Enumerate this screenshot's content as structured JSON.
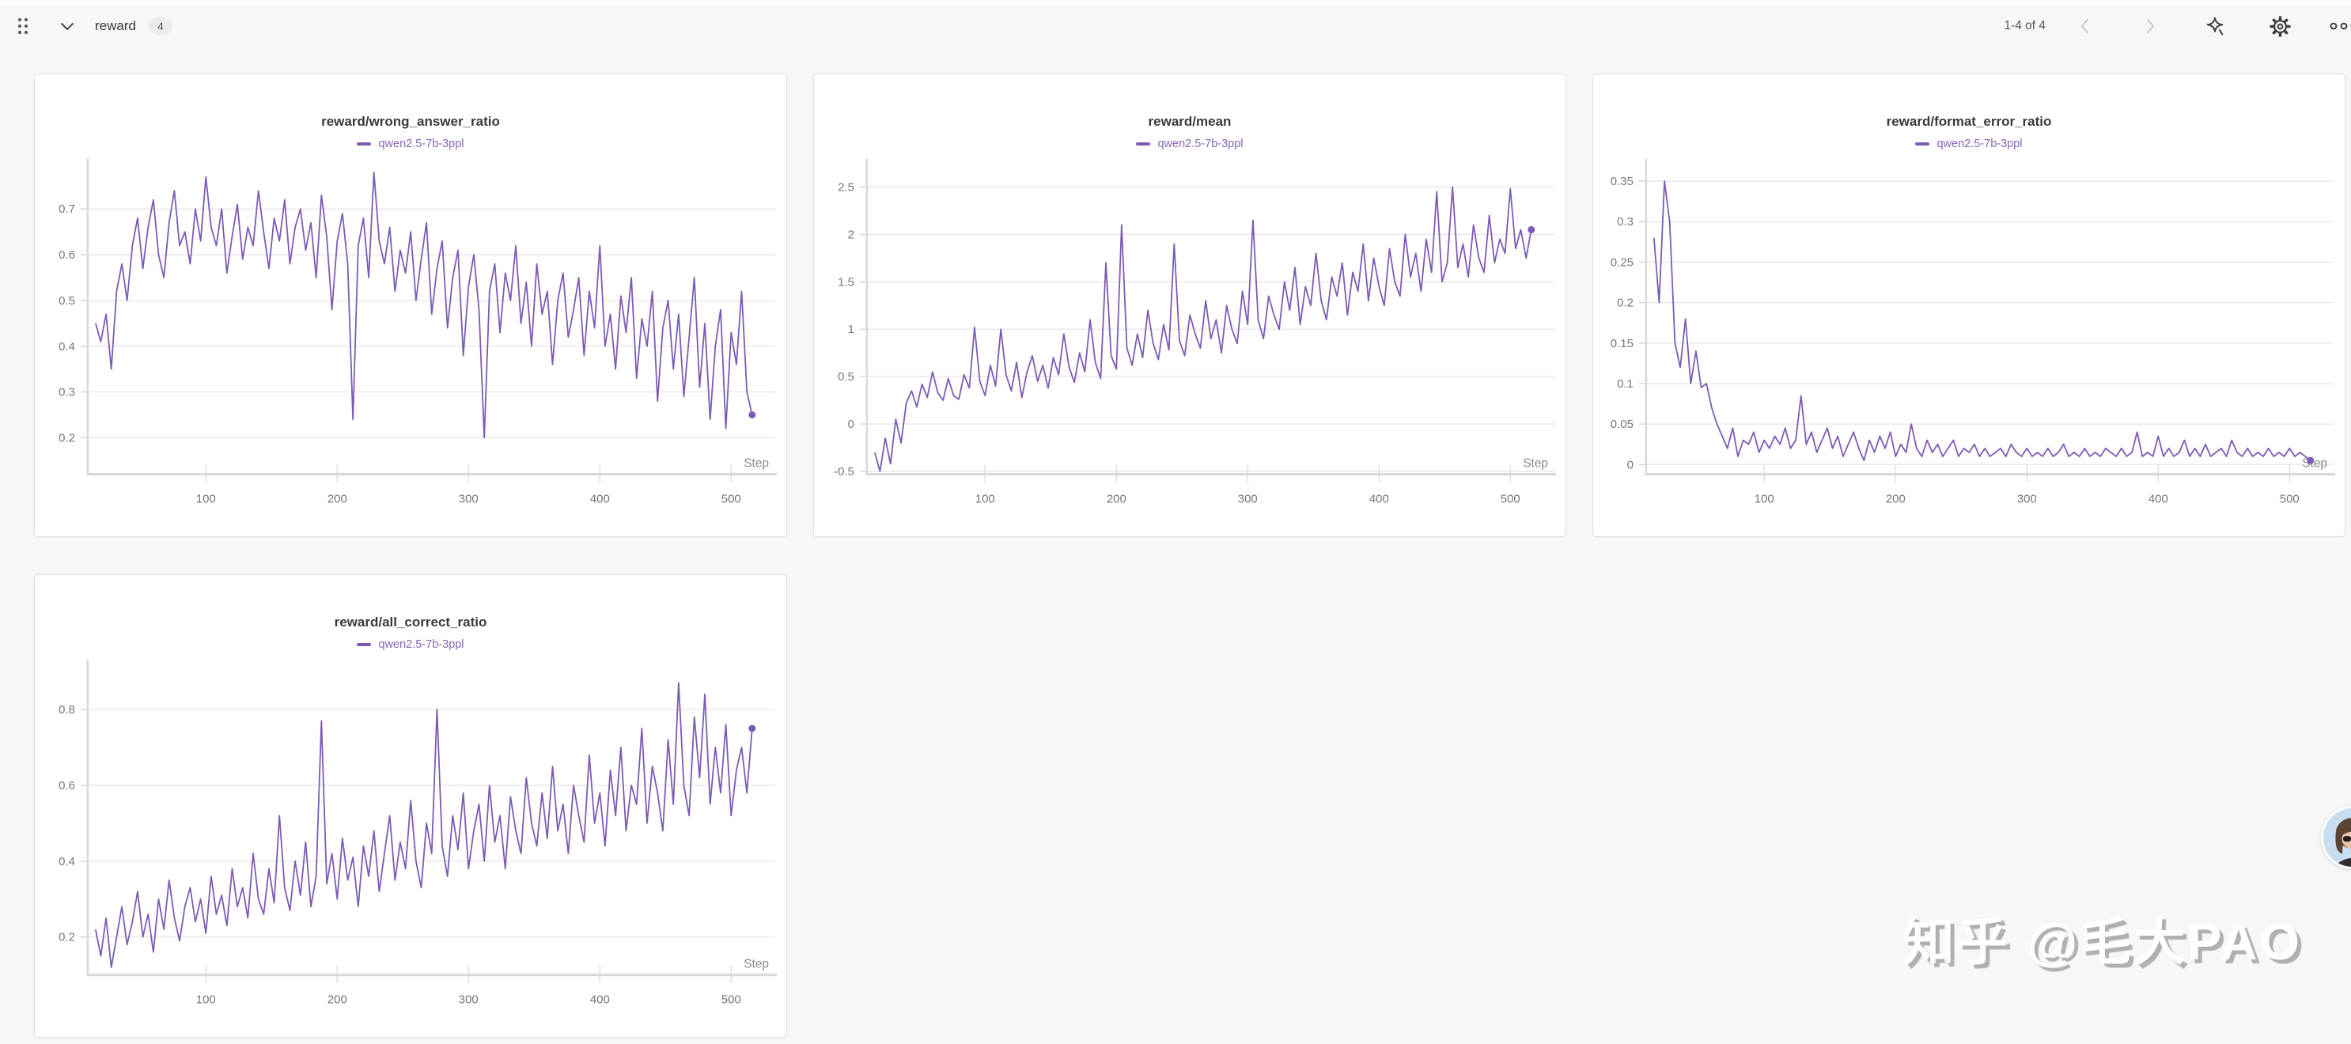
{
  "header": {
    "title": "reward",
    "count_badge": "4",
    "pagination": "1-4 of 4"
  },
  "watermark": "知乎 @毛大PAO",
  "colors": {
    "line": "#7d5bb5",
    "legend_text": "#8566b5",
    "grid": "#e8e8eb",
    "axis": "#d9d9dd"
  },
  "icons": {
    "drag_handle": "grip-dots",
    "collapse": "chevron-down",
    "prev": "chevron-left",
    "next": "chevron-right",
    "sparkle": "sparkle",
    "settings": "gear",
    "more": "ellipsis"
  },
  "chart_data": [
    {
      "type": "line",
      "title": "reward/wrong_answer_ratio",
      "xlabel": "Step",
      "xticks": [
        100,
        200,
        300,
        400,
        500
      ],
      "xlim": [
        10,
        530
      ],
      "yticks": [
        "0.2",
        "0.3",
        "0.4",
        "0.5",
        "0.6",
        "0.7"
      ],
      "ytick_values": [
        0.2,
        0.3,
        0.4,
        0.5,
        0.6,
        0.7
      ],
      "ylim": [
        0.12,
        0.8
      ],
      "grid": "horizontal",
      "legend_position": "top",
      "series": [
        {
          "name": "qwen2.5-7b-3ppl",
          "color": "#7d5bb5",
          "x_start": 16,
          "x_step": 4,
          "values": [
            0.45,
            0.41,
            0.47,
            0.35,
            0.52,
            0.58,
            0.5,
            0.62,
            0.68,
            0.57,
            0.66,
            0.72,
            0.6,
            0.55,
            0.67,
            0.74,
            0.62,
            0.65,
            0.58,
            0.7,
            0.63,
            0.77,
            0.66,
            0.62,
            0.7,
            0.56,
            0.64,
            0.71,
            0.59,
            0.66,
            0.62,
            0.74,
            0.65,
            0.57,
            0.68,
            0.63,
            0.72,
            0.58,
            0.66,
            0.7,
            0.61,
            0.67,
            0.55,
            0.73,
            0.64,
            0.48,
            0.63,
            0.69,
            0.58,
            0.24,
            0.62,
            0.68,
            0.55,
            0.78,
            0.63,
            0.58,
            0.66,
            0.52,
            0.61,
            0.56,
            0.65,
            0.5,
            0.59,
            0.67,
            0.47,
            0.57,
            0.63,
            0.44,
            0.55,
            0.61,
            0.38,
            0.53,
            0.6,
            0.48,
            0.2,
            0.52,
            0.58,
            0.43,
            0.56,
            0.5,
            0.62,
            0.45,
            0.54,
            0.4,
            0.58,
            0.47,
            0.52,
            0.36,
            0.5,
            0.56,
            0.42,
            0.48,
            0.55,
            0.38,
            0.52,
            0.44,
            0.62,
            0.4,
            0.47,
            0.35,
            0.51,
            0.43,
            0.55,
            0.33,
            0.46,
            0.4,
            0.52,
            0.28,
            0.44,
            0.5,
            0.35,
            0.47,
            0.29,
            0.42,
            0.55,
            0.31,
            0.45,
            0.24,
            0.4,
            0.48,
            0.22,
            0.43,
            0.36,
            0.52,
            0.3,
            0.25
          ]
        }
      ]
    },
    {
      "type": "line",
      "title": "reward/mean",
      "xlabel": "Step",
      "xticks": [
        100,
        200,
        300,
        400,
        500
      ],
      "xlim": [
        10,
        530
      ],
      "yticks": [
        "-0.5",
        "0",
        "0.5",
        "1",
        "1.5",
        "2",
        "2.5"
      ],
      "ytick_values": [
        -0.5,
        0,
        0.5,
        1,
        1.5,
        2,
        2.5
      ],
      "ylim": [
        -0.53,
        2.75
      ],
      "grid": "horizontal",
      "legend_position": "top",
      "series": [
        {
          "name": "qwen2.5-7b-3ppl",
          "color": "#7d5bb5",
          "x_start": 16,
          "x_step": 4,
          "values": [
            -0.3,
            -0.5,
            -0.15,
            -0.42,
            0.05,
            -0.2,
            0.22,
            0.35,
            0.18,
            0.42,
            0.28,
            0.55,
            0.33,
            0.25,
            0.48,
            0.3,
            0.26,
            0.52,
            0.38,
            1.02,
            0.45,
            0.3,
            0.62,
            0.4,
            1.0,
            0.52,
            0.35,
            0.65,
            0.28,
            0.55,
            0.72,
            0.45,
            0.62,
            0.38,
            0.7,
            0.52,
            0.95,
            0.6,
            0.44,
            0.75,
            0.55,
            1.1,
            0.65,
            0.48,
            1.7,
            0.72,
            0.58,
            2.1,
            0.8,
            0.62,
            0.95,
            0.7,
            1.2,
            0.85,
            0.68,
            1.05,
            0.78,
            1.9,
            0.88,
            0.72,
            1.15,
            0.95,
            0.8,
            1.3,
            0.9,
            1.1,
            0.75,
            1.25,
            1.0,
            0.85,
            1.4,
            1.05,
            2.15,
            1.1,
            0.9,
            1.35,
            1.15,
            1.0,
            1.5,
            1.2,
            1.65,
            1.05,
            1.45,
            1.25,
            1.8,
            1.3,
            1.1,
            1.55,
            1.35,
            1.7,
            1.15,
            1.6,
            1.4,
            1.9,
            1.3,
            1.75,
            1.45,
            1.25,
            1.85,
            1.5,
            1.35,
            2.0,
            1.55,
            1.8,
            1.4,
            1.95,
            1.6,
            2.45,
            1.5,
            1.7,
            2.5,
            1.65,
            1.9,
            1.55,
            2.1,
            1.75,
            1.6,
            2.2,
            1.7,
            1.95,
            1.8,
            2.48,
            1.85,
            2.05,
            1.75,
            2.05
          ]
        }
      ]
    },
    {
      "type": "line",
      "title": "reward/format_error_ratio",
      "xlabel": "Step",
      "xticks": [
        100,
        200,
        300,
        400,
        500
      ],
      "xlim": [
        10,
        530
      ],
      "yticks": [
        "0",
        "0.05",
        "0.1",
        "0.15",
        "0.2",
        "0.25",
        "0.3",
        "0.35"
      ],
      "ytick_values": [
        0,
        0.05,
        0.1,
        0.15,
        0.2,
        0.25,
        0.3,
        0.35
      ],
      "ylim": [
        -0.012,
        0.372
      ],
      "grid": "horizontal",
      "legend_position": "top",
      "series": [
        {
          "name": "qwen2.5-7b-3ppl",
          "color": "#7d5bb5",
          "x_start": 16,
          "x_step": 4,
          "values": [
            0.28,
            0.2,
            0.35,
            0.3,
            0.15,
            0.12,
            0.18,
            0.1,
            0.14,
            0.095,
            0.1,
            0.07,
            0.05,
            0.035,
            0.02,
            0.045,
            0.01,
            0.03,
            0.025,
            0.04,
            0.015,
            0.03,
            0.02,
            0.035,
            0.025,
            0.045,
            0.02,
            0.03,
            0.085,
            0.025,
            0.04,
            0.015,
            0.03,
            0.045,
            0.02,
            0.035,
            0.01,
            0.025,
            0.04,
            0.02,
            0.005,
            0.03,
            0.015,
            0.035,
            0.02,
            0.04,
            0.01,
            0.025,
            0.015,
            0.05,
            0.02,
            0.01,
            0.03,
            0.015,
            0.025,
            0.01,
            0.02,
            0.03,
            0.01,
            0.02,
            0.015,
            0.025,
            0.01,
            0.02,
            0.01,
            0.015,
            0.02,
            0.01,
            0.025,
            0.015,
            0.01,
            0.02,
            0.01,
            0.015,
            0.01,
            0.02,
            0.01,
            0.015,
            0.025,
            0.01,
            0.015,
            0.01,
            0.02,
            0.01,
            0.015,
            0.01,
            0.02,
            0.015,
            0.01,
            0.02,
            0.01,
            0.015,
            0.04,
            0.01,
            0.015,
            0.01,
            0.035,
            0.01,
            0.02,
            0.01,
            0.015,
            0.03,
            0.01,
            0.02,
            0.01,
            0.025,
            0.01,
            0.015,
            0.02,
            0.01,
            0.03,
            0.015,
            0.01,
            0.02,
            0.01,
            0.015,
            0.01,
            0.02,
            0.01,
            0.015,
            0.01,
            0.02,
            0.01,
            0.015,
            0.01,
            0.005
          ]
        }
      ]
    },
    {
      "type": "line",
      "title": "reward/all_correct_ratio",
      "xlabel": "Step",
      "xticks": [
        100,
        200,
        300,
        400,
        500
      ],
      "xlim": [
        10,
        530
      ],
      "yticks": [
        "0.2",
        "0.4",
        "0.6",
        "0.8"
      ],
      "ytick_values": [
        0.2,
        0.4,
        0.6,
        0.8
      ],
      "ylim": [
        0.1,
        0.92
      ],
      "grid": "horizontal",
      "legend_position": "top",
      "series": [
        {
          "name": "qwen2.5-7b-3ppl",
          "color": "#7d5bb5",
          "x_start": 16,
          "x_step": 4,
          "values": [
            0.22,
            0.15,
            0.25,
            0.12,
            0.2,
            0.28,
            0.18,
            0.24,
            0.32,
            0.2,
            0.26,
            0.16,
            0.3,
            0.22,
            0.35,
            0.25,
            0.19,
            0.28,
            0.33,
            0.24,
            0.3,
            0.21,
            0.36,
            0.26,
            0.31,
            0.23,
            0.38,
            0.28,
            0.33,
            0.25,
            0.42,
            0.3,
            0.26,
            0.38,
            0.29,
            0.52,
            0.33,
            0.27,
            0.4,
            0.31,
            0.45,
            0.28,
            0.36,
            0.77,
            0.34,
            0.42,
            0.3,
            0.46,
            0.35,
            0.41,
            0.28,
            0.44,
            0.36,
            0.48,
            0.32,
            0.42,
            0.52,
            0.35,
            0.45,
            0.38,
            0.56,
            0.4,
            0.33,
            0.5,
            0.42,
            0.8,
            0.44,
            0.36,
            0.52,
            0.43,
            0.58,
            0.38,
            0.48,
            0.55,
            0.4,
            0.6,
            0.45,
            0.52,
            0.38,
            0.57,
            0.48,
            0.42,
            0.62,
            0.5,
            0.44,
            0.58,
            0.46,
            0.65,
            0.48,
            0.55,
            0.42,
            0.6,
            0.52,
            0.45,
            0.68,
            0.5,
            0.58,
            0.44,
            0.64,
            0.52,
            0.7,
            0.48,
            0.6,
            0.55,
            0.75,
            0.5,
            0.65,
            0.58,
            0.48,
            0.72,
            0.55,
            0.87,
            0.6,
            0.52,
            0.78,
            0.62,
            0.84,
            0.55,
            0.7,
            0.58,
            0.76,
            0.52,
            0.64,
            0.7,
            0.58,
            0.75
          ]
        }
      ]
    }
  ]
}
